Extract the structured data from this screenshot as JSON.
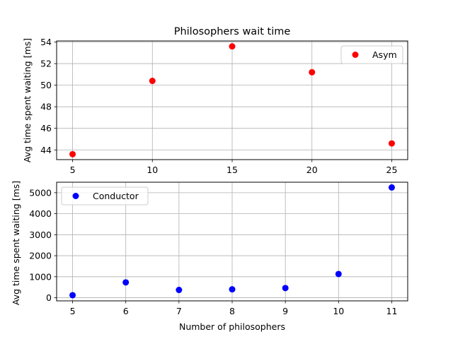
{
  "chart_data": [
    {
      "type": "scatter",
      "title": "Philosophers wait time",
      "xlabel": "",
      "ylabel": "Avg time spent waiting [ms]",
      "xlim": [
        4.0,
        26.0
      ],
      "ylim": [
        43.1,
        54.1
      ],
      "xticks": [
        5,
        10,
        15,
        20,
        25
      ],
      "yticks": [
        44,
        46,
        48,
        50,
        52,
        54
      ],
      "grid": true,
      "legend_position": "upper right",
      "series": [
        {
          "name": "Asym",
          "color": "#ff0000",
          "marker": "circle",
          "x": [
            5,
            10,
            15,
            20,
            25
          ],
          "y": [
            43.6,
            50.4,
            53.6,
            51.2,
            44.6
          ]
        }
      ]
    },
    {
      "type": "scatter",
      "title": "",
      "xlabel": "Number of philosophers",
      "ylabel": "Avg time spent waiting [ms]",
      "xlim": [
        4.7,
        11.3
      ],
      "ylim": [
        -150,
        5500
      ],
      "xticks": [
        5,
        6,
        7,
        8,
        9,
        10,
        11
      ],
      "yticks": [
        0,
        1000,
        2000,
        3000,
        4000,
        5000
      ],
      "grid": true,
      "legend_position": "upper left",
      "series": [
        {
          "name": "Conductor",
          "color": "#0000ff",
          "marker": "circle",
          "x": [
            5,
            6,
            7,
            8,
            9,
            10,
            11
          ],
          "y": [
            120,
            730,
            370,
            400,
            460,
            1130,
            5250
          ]
        }
      ]
    }
  ]
}
